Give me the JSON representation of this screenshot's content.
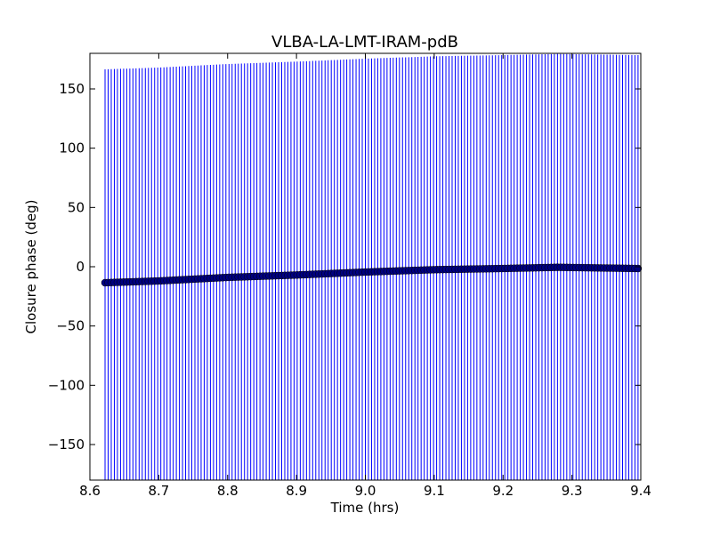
{
  "chart_data": {
    "type": "scatter",
    "title": "VLBA-LA-LMT-IRAM-pdB",
    "xlabel": "Time (hrs)",
    "ylabel": "Closure phase (deg)",
    "xlim": [
      8.6,
      9.4
    ],
    "ylim": [
      -180,
      180
    ],
    "x_ticks": [
      8.6,
      8.7,
      8.8,
      8.9,
      9.0,
      9.1,
      9.2,
      9.3,
      9.4
    ],
    "x_tick_labels": [
      "8.6",
      "8.7",
      "8.8",
      "8.9",
      "9.0",
      "9.1",
      "9.2",
      "9.3",
      "9.4"
    ],
    "y_ticks": [
      -150,
      -100,
      -50,
      0,
      50,
      100,
      150
    ],
    "y_tick_labels": [
      "−150",
      "−100",
      "−50",
      "0",
      "50",
      "100",
      "150"
    ],
    "grid": false,
    "legend": "none",
    "marker_color": "#000080",
    "errorbar_color": "#0000ff",
    "errorbar_halfwidth_deg": 180,
    "series": [
      {
        "x_start": 8.622,
        "x_end": 9.395,
        "x_step": 0.0045,
        "trend_points": [
          {
            "x": 8.622,
            "y": -13.5
          },
          {
            "x": 8.7,
            "y": -12
          },
          {
            "x": 8.8,
            "y": -9
          },
          {
            "x": 8.9,
            "y": -7
          },
          {
            "x": 9.0,
            "y": -4.5
          },
          {
            "x": 9.1,
            "y": -2.5
          },
          {
            "x": 9.2,
            "y": -1.5
          },
          {
            "x": 9.28,
            "y": -0.5
          },
          {
            "x": 9.395,
            "y": -1.5
          }
        ]
      }
    ]
  }
}
